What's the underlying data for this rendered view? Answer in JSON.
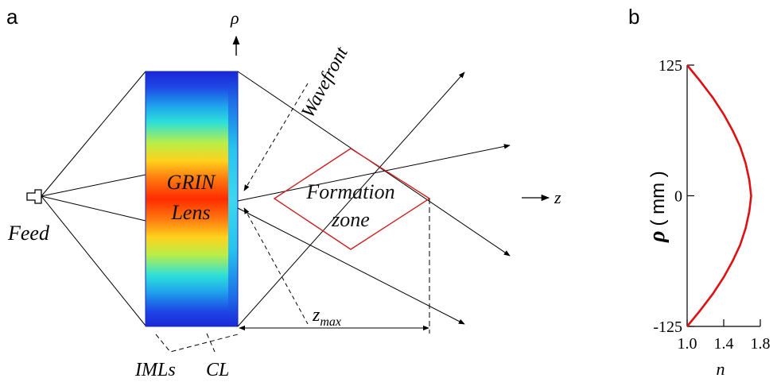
{
  "panel_a": {
    "label": "a",
    "rho_label": "ρ",
    "wavefront_label": "Wavefront",
    "lens_label_line1": "GRIN",
    "lens_label_line2": "Lens",
    "formation_label_line1": "Formation",
    "formation_label_line2": "zone",
    "z_label": "z",
    "feed_label": "Feed",
    "zmax_main": "z",
    "zmax_sub": "max",
    "imls_label": "IMLs",
    "cl_label": "CL",
    "colors": {
      "lens_edge": "#1d2fd6",
      "lens_center": "#ff2a00",
      "formation_zone": "#cc2222",
      "rays": "#000000"
    }
  },
  "panel_b": {
    "label": "b",
    "ylabel_symbol": "ρ",
    "ylabel_unit": "( mm )",
    "xlabel": "n",
    "y_ticks": [
      "125",
      "0",
      "-125"
    ],
    "x_ticks": [
      "1.0",
      "1.4",
      "1.8"
    ]
  },
  "chart_data": {
    "type": "line",
    "xlabel": "n",
    "ylabel": "ρ ( mm )",
    "xlim": [
      1.0,
      1.8
    ],
    "ylim": [
      -125,
      125
    ],
    "series": [
      {
        "color": "#dd1111",
        "x": [
          1.0,
          1.14,
          1.28,
          1.4,
          1.5,
          1.58,
          1.64,
          1.68,
          1.7,
          1.68,
          1.64,
          1.58,
          1.5,
          1.4,
          1.28,
          1.14,
          1.0
        ],
        "y": [
          125,
          110,
          94,
          78,
          62,
          47,
          31,
          15,
          0,
          -15,
          -31,
          -47,
          -62,
          -78,
          -94,
          -110,
          -125
        ]
      }
    ]
  }
}
